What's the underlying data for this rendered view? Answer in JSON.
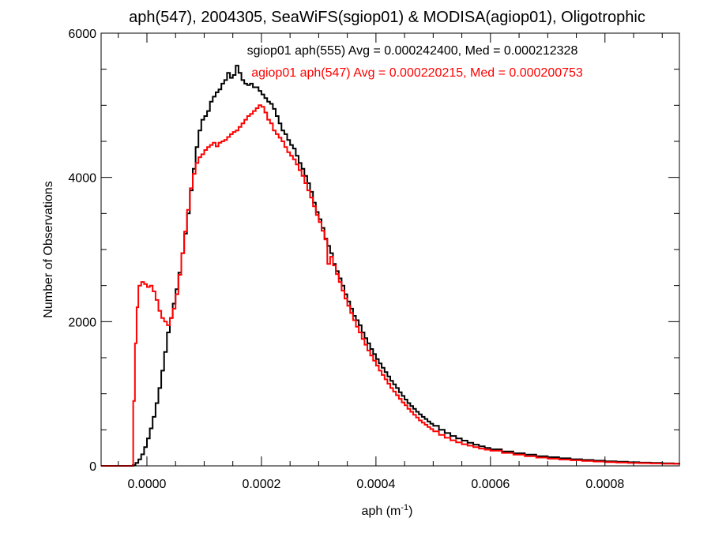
{
  "chart_data": {
    "type": "line",
    "title": "aph(547), 2004305, SeaWiFS(sgiop01) & MODISA(agiop01), Oligotrophic",
    "xlabel": {
      "base": "aph (m",
      "sup": "-1",
      "close": ")"
    },
    "ylabel": "Number of Observations",
    "xlim": [
      -8e-05,
      0.00093
    ],
    "ylim": [
      0,
      6000
    ],
    "x_ticks": [
      {
        "value": 0.0,
        "label": "0.0000"
      },
      {
        "value": 0.0002,
        "label": "0.0002"
      },
      {
        "value": 0.0004,
        "label": "0.0004"
      },
      {
        "value": 0.0006,
        "label": "0.0006"
      },
      {
        "value": 0.0008,
        "label": "0.0008"
      }
    ],
    "y_ticks": [
      {
        "value": 0,
        "label": "0"
      },
      {
        "value": 2000,
        "label": "2000"
      },
      {
        "value": 4000,
        "label": "4000"
      },
      {
        "value": 6000,
        "label": "6000"
      }
    ],
    "grid": false,
    "legend_placement": "top-center",
    "series": [
      {
        "name": "sgiop01 aph(555) Avg = 0.000242400, Med = 0.000212328",
        "color": "#000000",
        "points": [
          [
            -8e-05,
            0
          ],
          [
            -3e-05,
            0
          ],
          [
            -2.5e-05,
            10
          ],
          [
            -2e-05,
            40
          ],
          [
            -1.5e-05,
            90
          ],
          [
            -1e-05,
            160
          ],
          [
            -5e-06,
            260
          ],
          [
            0.0,
            380
          ],
          [
            5e-06,
            520
          ],
          [
            1e-05,
            680
          ],
          [
            1.5e-05,
            870
          ],
          [
            2e-05,
            1080
          ],
          [
            2.5e-05,
            1320
          ],
          [
            3e-05,
            1580
          ],
          [
            3.5e-05,
            1850
          ],
          [
            4e-05,
            2050
          ],
          [
            4.5e-05,
            2250
          ],
          [
            5e-05,
            2450
          ],
          [
            5.5e-05,
            2680
          ],
          [
            6e-05,
            2950
          ],
          [
            6.5e-05,
            3220
          ],
          [
            7e-05,
            3500
          ],
          [
            7.5e-05,
            3820
          ],
          [
            8e-05,
            4120
          ],
          [
            8.5e-05,
            4420
          ],
          [
            9e-05,
            4650
          ],
          [
            9.5e-05,
            4800
          ],
          [
            0.0001,
            4850
          ],
          [
            0.000105,
            4920
          ],
          [
            0.00011,
            5050
          ],
          [
            0.000115,
            5120
          ],
          [
            0.00012,
            5180
          ],
          [
            0.000125,
            5220
          ],
          [
            0.00013,
            5300
          ],
          [
            0.000135,
            5350
          ],
          [
            0.00014,
            5450
          ],
          [
            0.000145,
            5380
          ],
          [
            0.00015,
            5420
          ],
          [
            0.000155,
            5550
          ],
          [
            0.00016,
            5450
          ],
          [
            0.000165,
            5350
          ],
          [
            0.00017,
            5300
          ],
          [
            0.000175,
            5280
          ],
          [
            0.00018,
            5300
          ],
          [
            0.000185,
            5250
          ],
          [
            0.00019,
            5250
          ],
          [
            0.000195,
            5200
          ],
          [
            0.0002,
            5150
          ],
          [
            0.000205,
            5100
          ],
          [
            0.00021,
            5050
          ],
          [
            0.000215,
            5020
          ],
          [
            0.00022,
            4950
          ],
          [
            0.000225,
            4850
          ],
          [
            0.00023,
            4750
          ],
          [
            0.000235,
            4650
          ],
          [
            0.00024,
            4600
          ],
          [
            0.000245,
            4520
          ],
          [
            0.00025,
            4450
          ],
          [
            0.000255,
            4400
          ],
          [
            0.00026,
            4300
          ],
          [
            0.000265,
            4200
          ],
          [
            0.00027,
            4120
          ],
          [
            0.000275,
            4020
          ],
          [
            0.00028,
            3920
          ],
          [
            0.000285,
            3800
          ],
          [
            0.00029,
            3650
          ],
          [
            0.000295,
            3520
          ],
          [
            0.0003,
            3420
          ],
          [
            0.000305,
            3300
          ],
          [
            0.00031,
            3150
          ],
          [
            0.000315,
            3050
          ],
          [
            0.00032,
            2950
          ],
          [
            0.000325,
            2800
          ],
          [
            0.00033,
            2700
          ],
          [
            0.000335,
            2600
          ],
          [
            0.00034,
            2500
          ],
          [
            0.000345,
            2380
          ],
          [
            0.00035,
            2280
          ],
          [
            0.000355,
            2180
          ],
          [
            0.00036,
            2080
          ],
          [
            0.000365,
            2020
          ],
          [
            0.00037,
            1950
          ],
          [
            0.000375,
            1850
          ],
          [
            0.00038,
            1770
          ],
          [
            0.000385,
            1700
          ],
          [
            0.00039,
            1620
          ],
          [
            0.000395,
            1550
          ],
          [
            0.0004,
            1480
          ],
          [
            0.000405,
            1420
          ],
          [
            0.00041,
            1360
          ],
          [
            0.000415,
            1300
          ],
          [
            0.00042,
            1240
          ],
          [
            0.000425,
            1180
          ],
          [
            0.00043,
            1130
          ],
          [
            0.000435,
            1080
          ],
          [
            0.00044,
            1020
          ],
          [
            0.000445,
            970
          ],
          [
            0.00045,
            920
          ],
          [
            0.000455,
            870
          ],
          [
            0.00046,
            830
          ],
          [
            0.000465,
            790
          ],
          [
            0.00047,
            750
          ],
          [
            0.000475,
            715
          ],
          [
            0.00048,
            680
          ],
          [
            0.000485,
            650
          ],
          [
            0.00049,
            615
          ],
          [
            0.000495,
            585
          ],
          [
            0.0005,
            555
          ],
          [
            0.00051,
            500
          ],
          [
            0.00052,
            455
          ],
          [
            0.00053,
            415
          ],
          [
            0.00054,
            380
          ],
          [
            0.00055,
            350
          ],
          [
            0.00056,
            320
          ],
          [
            0.00057,
            295
          ],
          [
            0.00058,
            270
          ],
          [
            0.00059,
            250
          ],
          [
            0.0006,
            230
          ],
          [
            0.00062,
            200
          ],
          [
            0.00064,
            175
          ],
          [
            0.00066,
            155
          ],
          [
            0.00068,
            135
          ],
          [
            0.0007,
            120
          ],
          [
            0.00072,
            105
          ],
          [
            0.00074,
            92
          ],
          [
            0.00076,
            82
          ],
          [
            0.00078,
            72
          ],
          [
            0.0008,
            64
          ],
          [
            0.00082,
            57
          ],
          [
            0.00084,
            50
          ],
          [
            0.00086,
            45
          ],
          [
            0.00088,
            40
          ],
          [
            0.0009,
            36
          ],
          [
            0.00092,
            32
          ],
          [
            0.00093,
            30
          ]
        ]
      },
      {
        "name": "agiop01 aph(547) Avg = 0.000220215, Med = 0.000200753",
        "color": "#ff0000",
        "points": [
          [
            -8e-05,
            0
          ],
          [
            -3e-05,
            0
          ],
          [
            -2.5e-05,
            0
          ],
          [
            -2.4e-05,
            900
          ],
          [
            -2.1e-05,
            1700
          ],
          [
            -1.8e-05,
            2200
          ],
          [
            -1.5e-05,
            2500
          ],
          [
            -1e-05,
            2550
          ],
          [
            -5e-06,
            2520
          ],
          [
            0.0,
            2480
          ],
          [
            5e-06,
            2500
          ],
          [
            1e-05,
            2420
          ],
          [
            1.5e-05,
            2300
          ],
          [
            2e-05,
            2150
          ],
          [
            2.5e-05,
            2050
          ],
          [
            3e-05,
            2000
          ],
          [
            3.5e-05,
            1950
          ],
          [
            4e-05,
            2050
          ],
          [
            4.5e-05,
            2180
          ],
          [
            5e-05,
            2380
          ],
          [
            5.5e-05,
            2650
          ],
          [
            6e-05,
            2950
          ],
          [
            6.5e-05,
            3250
          ],
          [
            7e-05,
            3550
          ],
          [
            7.5e-05,
            3850
          ],
          [
            8e-05,
            4050
          ],
          [
            8.5e-05,
            4200
          ],
          [
            9e-05,
            4280
          ],
          [
            9.5e-05,
            4320
          ],
          [
            0.0001,
            4380
          ],
          [
            0.000105,
            4420
          ],
          [
            0.00011,
            4450
          ],
          [
            0.000115,
            4480
          ],
          [
            0.00012,
            4430
          ],
          [
            0.000125,
            4480
          ],
          [
            0.00013,
            4500
          ],
          [
            0.000135,
            4520
          ],
          [
            0.00014,
            4560
          ],
          [
            0.000145,
            4600
          ],
          [
            0.00015,
            4630
          ],
          [
            0.000155,
            4650
          ],
          [
            0.00016,
            4700
          ],
          [
            0.000165,
            4750
          ],
          [
            0.00017,
            4800
          ],
          [
            0.000175,
            4850
          ],
          [
            0.00018,
            4880
          ],
          [
            0.000185,
            4920
          ],
          [
            0.00019,
            4960
          ],
          [
            0.000195,
            5000
          ],
          [
            0.0002,
            4980
          ],
          [
            0.000205,
            4900
          ],
          [
            0.00021,
            4800
          ],
          [
            0.000215,
            4750
          ],
          [
            0.00022,
            4650
          ],
          [
            0.000225,
            4600
          ],
          [
            0.00023,
            4550
          ],
          [
            0.000235,
            4500
          ],
          [
            0.00024,
            4420
          ],
          [
            0.000245,
            4350
          ],
          [
            0.00025,
            4300
          ],
          [
            0.000255,
            4250
          ],
          [
            0.00026,
            4180
          ],
          [
            0.000265,
            4100
          ],
          [
            0.00027,
            4020
          ],
          [
            0.000275,
            3920
          ],
          [
            0.00028,
            3820
          ],
          [
            0.000285,
            3720
          ],
          [
            0.00029,
            3600
          ],
          [
            0.000295,
            3480
          ],
          [
            0.0003,
            3380
          ],
          [
            0.000305,
            3260
          ],
          [
            0.00031,
            3140
          ],
          [
            0.000315,
            2800
          ],
          [
            0.00032,
            2900
          ],
          [
            0.000325,
            2780
          ],
          [
            0.00033,
            2660
          ],
          [
            0.000335,
            2550
          ],
          [
            0.00034,
            2430
          ],
          [
            0.000345,
            2320
          ],
          [
            0.00035,
            2220
          ],
          [
            0.000355,
            2120
          ],
          [
            0.00036,
            2020
          ],
          [
            0.000365,
            1930
          ],
          [
            0.00037,
            1850
          ],
          [
            0.000375,
            1760
          ],
          [
            0.00038,
            1680
          ],
          [
            0.000385,
            1600
          ],
          [
            0.00039,
            1530
          ],
          [
            0.000395,
            1460
          ],
          [
            0.0004,
            1390
          ],
          [
            0.000405,
            1320
          ],
          [
            0.00041,
            1260
          ],
          [
            0.000415,
            1200
          ],
          [
            0.00042,
            1140
          ],
          [
            0.000425,
            1080
          ],
          [
            0.00043,
            1030
          ],
          [
            0.000435,
            980
          ],
          [
            0.00044,
            930
          ],
          [
            0.000445,
            880
          ],
          [
            0.00045,
            840
          ],
          [
            0.000455,
            790
          ],
          [
            0.00046,
            750
          ],
          [
            0.000465,
            710
          ],
          [
            0.00047,
            670
          ],
          [
            0.000475,
            630
          ],
          [
            0.00048,
            600
          ],
          [
            0.000485,
            570
          ],
          [
            0.00049,
            540
          ],
          [
            0.000495,
            510
          ],
          [
            0.0005,
            480
          ],
          [
            0.00051,
            430
          ],
          [
            0.00052,
            390
          ],
          [
            0.00053,
            355
          ],
          [
            0.00054,
            325
          ],
          [
            0.00055,
            300
          ],
          [
            0.00056,
            280
          ],
          [
            0.00057,
            260
          ],
          [
            0.00058,
            240
          ],
          [
            0.00059,
            225
          ],
          [
            0.0006,
            210
          ],
          [
            0.00062,
            180
          ],
          [
            0.00064,
            155
          ],
          [
            0.00066,
            135
          ],
          [
            0.00068,
            115
          ],
          [
            0.0007,
            100
          ],
          [
            0.00072,
            88
          ],
          [
            0.00074,
            78
          ],
          [
            0.00076,
            68
          ],
          [
            0.00078,
            60
          ],
          [
            0.0008,
            53
          ],
          [
            0.00082,
            47
          ],
          [
            0.00084,
            42
          ],
          [
            0.00086,
            38
          ],
          [
            0.00088,
            34
          ],
          [
            0.0009,
            31
          ],
          [
            0.00092,
            28
          ],
          [
            0.00093,
            27
          ]
        ]
      }
    ]
  }
}
